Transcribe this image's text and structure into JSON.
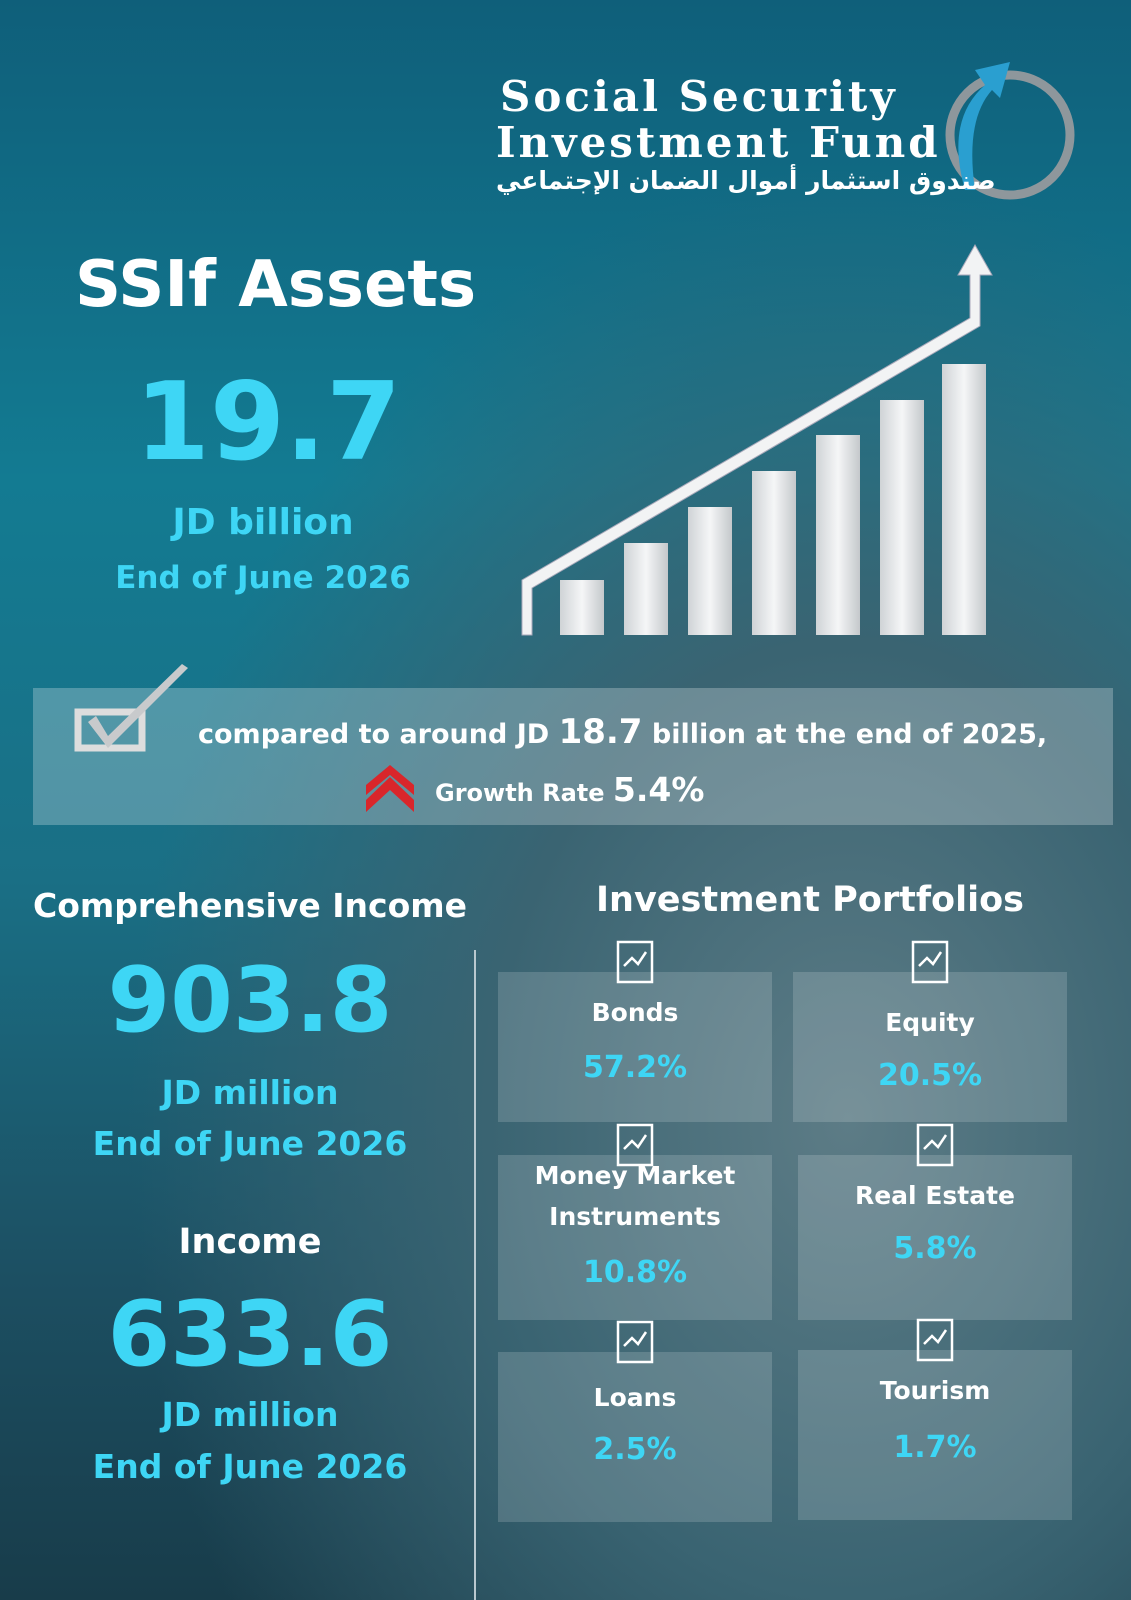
{
  "header": {
    "logo_line1": "Social Security",
    "logo_line2": "Investment Fund",
    "logo_arabic": "صندوق استثمار أموال الضمان الإجتماعي"
  },
  "assets": {
    "title": "SSIf Assets",
    "value": 19.7,
    "unit": "JD billion",
    "date": "End of June 2026"
  },
  "comparison": {
    "prefix": "compared to around JD",
    "amount": 18.7,
    "suffix": "billion at the end of 2025,",
    "growth_label": "Growth Rate",
    "growth_value": "5.4%"
  },
  "comprehensive_income": {
    "title": "Comprehensive Income",
    "value": 903.8,
    "unit": "JD million",
    "date": "End of June 2026"
  },
  "income": {
    "title": "Income",
    "value": 633.6,
    "unit": "JD million",
    "date": "End of June 2026"
  },
  "portfolios": {
    "title": "Investment Portfolios",
    "items": [
      {
        "name": "Bonds",
        "share": "57.2%"
      },
      {
        "name": "Equity",
        "share": "20.5%"
      },
      {
        "name": "Money Market Instruments",
        "share": "10.8%"
      },
      {
        "name": "Real Estate",
        "share": "5.8%"
      },
      {
        "name": "Loans",
        "share": "2.5%"
      },
      {
        "name": "Tourism",
        "share": "1.7%"
      }
    ]
  }
}
